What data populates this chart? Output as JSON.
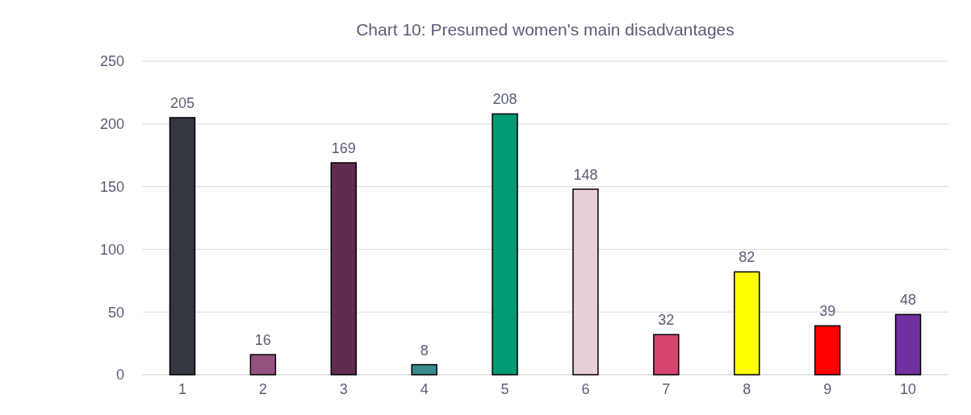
{
  "chart_data": {
    "type": "bar",
    "title": "Chart 10: Presumed women's main disadvantages",
    "categories": [
      "1",
      "2",
      "3",
      "4",
      "5",
      "6",
      "7",
      "8",
      "9",
      "10"
    ],
    "values": [
      205,
      16,
      169,
      8,
      208,
      148,
      32,
      82,
      39,
      48
    ],
    "colors": [
      "#333740",
      "#955281",
      "#5f2c4f",
      "#3a8a8c",
      "#009a73",
      "#e8ced6",
      "#d6456d",
      "#ffff00",
      "#ff0000",
      "#7030a0"
    ],
    "ylim": [
      0,
      250
    ],
    "yticks": [
      0,
      50,
      100,
      150,
      200,
      250
    ],
    "grid": "y",
    "data_labels": true
  }
}
